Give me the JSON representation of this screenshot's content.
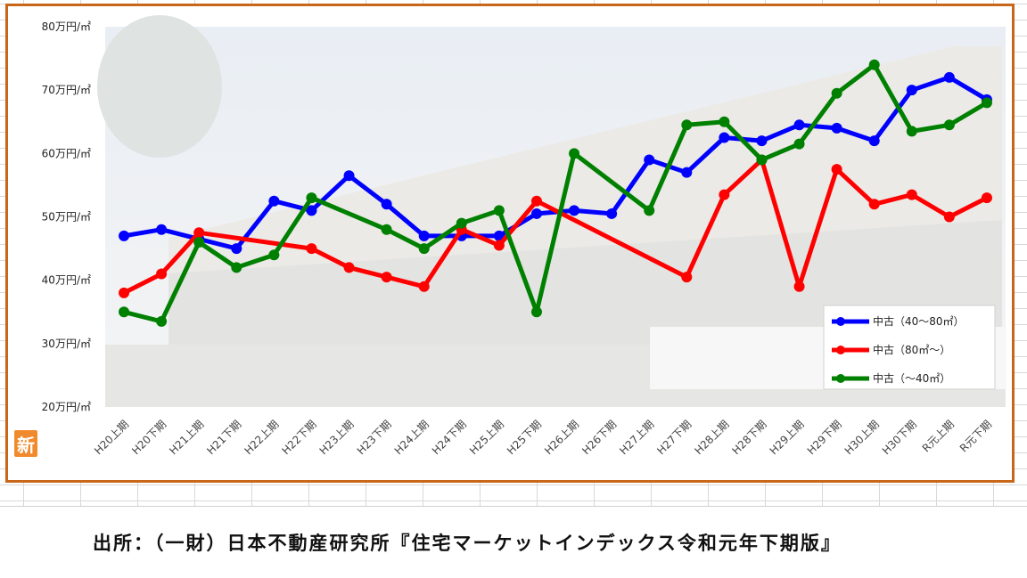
{
  "chart_data": {
    "type": "line",
    "title": "",
    "xlabel": "",
    "ylabel": "",
    "ylim": [
      20,
      80
    ],
    "y_ticks": [
      "20万円/㎡",
      "30万円/㎡",
      "40万円/㎡",
      "50万円/㎡",
      "60万円/㎡",
      "70万円/㎡",
      "80万円/㎡"
    ],
    "y_tick_values": [
      20,
      30,
      40,
      50,
      60,
      70,
      80
    ],
    "categories": [
      "H20上期",
      "H20下期",
      "H21上期",
      "H21下期",
      "H22上期",
      "H22下期",
      "H23上期",
      "H23下期",
      "H24上期",
      "H24下期",
      "H25上期",
      "H25下期",
      "H26上期",
      "H26下期",
      "H27上期",
      "H27下期",
      "H28上期",
      "H28下期",
      "H29上期",
      "H29下期",
      "H30上期",
      "H30下期",
      "R元上期",
      "R元下期"
    ],
    "legend_position": "bottom-right",
    "series": [
      {
        "name": "中古（40～80㎡）",
        "color": "#0000ff",
        "values": [
          47,
          48,
          46.5,
          45,
          52.5,
          51,
          56.5,
          52,
          47,
          47,
          47,
          50.5,
          51,
          50.5,
          59,
          57,
          62.5,
          62,
          64.5,
          64,
          62,
          70,
          72,
          68.5
        ]
      },
      {
        "name": "中古（80㎡～）",
        "color": "#ff0000",
        "values": [
          38,
          41,
          47.5,
          null,
          null,
          45,
          42,
          40.5,
          39,
          48,
          45.5,
          52.5,
          null,
          null,
          null,
          40.5,
          53.5,
          59,
          39,
          57.5,
          52,
          53.5,
          50,
          53
        ]
      },
      {
        "name": "中古（～40㎡）",
        "color": "#008000",
        "values": [
          35,
          33.5,
          46,
          42,
          44,
          53,
          null,
          48,
          45,
          49,
          51,
          35,
          60,
          null,
          51,
          64.5,
          65,
          59,
          61.5,
          69.5,
          74,
          63.5,
          64.5,
          68
        ]
      }
    ]
  },
  "badge_text": "新",
  "source_text": "出所：（一財）日本不動産研究所『住宅マーケットインデックス令和元年下期版』"
}
